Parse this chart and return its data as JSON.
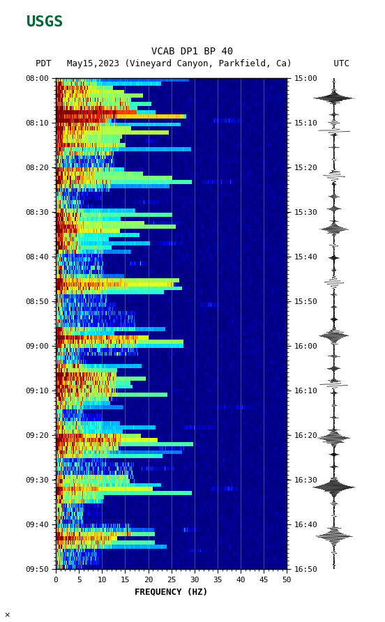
{
  "title_line1": "VCAB DP1 BP 40",
  "title_line2": "PDT   May15,2023 (Vineyard Canyon, Parkfield, Ca)        UTC",
  "xlabel": "FREQUENCY (HZ)",
  "left_times": [
    "08:00",
    "08:10",
    "08:20",
    "08:30",
    "08:40",
    "08:50",
    "09:00",
    "09:10",
    "09:20",
    "09:30",
    "09:40",
    "09:50"
  ],
  "right_times": [
    "15:00",
    "15:10",
    "15:20",
    "15:30",
    "15:40",
    "15:50",
    "16:00",
    "16:10",
    "16:20",
    "16:30",
    "16:40",
    "16:50"
  ],
  "freq_min": 0,
  "freq_max": 50,
  "freq_ticks": [
    0,
    5,
    10,
    15,
    20,
    25,
    30,
    35,
    40,
    45,
    50
  ],
  "n_time_steps": 120,
  "n_freq_steps": 500,
  "background_color": "#ffffff",
  "usgs_color": "#006633",
  "title_fontsize": 10,
  "tick_fontsize": 8,
  "label_fontsize": 9,
  "colormap": "jet",
  "seed": 42,
  "fig_width": 5.52,
  "fig_height": 8.92
}
